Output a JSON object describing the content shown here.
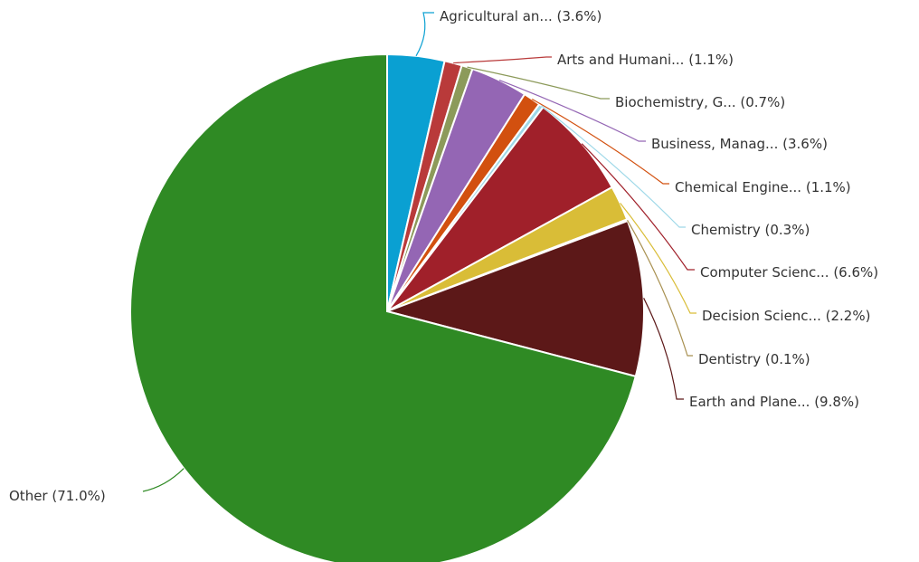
{
  "chart_data": {
    "type": "pie",
    "slices": [
      {
        "name": "Agricultural an...",
        "label": "Agricultural an... (3.6%)",
        "value": 3.6,
        "color": "#0aa0d2"
      },
      {
        "name": "Arts and Humani...",
        "label": "Arts and Humani... (1.1%)",
        "value": 1.1,
        "color": "#b93a3a"
      },
      {
        "name": "Biochemistry, G...",
        "label": "Biochemistry, G... (0.7%)",
        "value": 0.7,
        "color": "#8c9a5a"
      },
      {
        "name": "Business, Manag...",
        "label": "Business, Manag... (3.6%)",
        "value": 3.6,
        "color": "#9466b4"
      },
      {
        "name": "Chemical Engine...",
        "label": "Chemical Engine... (1.1%)",
        "value": 1.1,
        "color": "#d2500f"
      },
      {
        "name": "Chemistry",
        "label": "Chemistry (0.3%)",
        "value": 0.3,
        "color": "#9ed8e8"
      },
      {
        "name": "Computer Scienc...",
        "label": "Computer Scienc... (6.6%)",
        "value": 6.6,
        "color": "#a0202a"
      },
      {
        "name": "Decision Scienc...",
        "label": "Decision Scienc... (2.2%)",
        "value": 2.2,
        "color": "#d9bd37"
      },
      {
        "name": "Dentistry",
        "label": "Dentistry (0.1%)",
        "value": 0.1,
        "color": "#a89050"
      },
      {
        "name": "Earth and Plane...",
        "label": "Earth and Plane... (9.8%)",
        "value": 9.8,
        "color": "#5c1818"
      },
      {
        "name": "Other",
        "label": "Other (71.0%)",
        "value": 71.0,
        "color": "#2f8a24"
      }
    ],
    "start_angle": "12 o'clock",
    "direction": "clockwise"
  }
}
